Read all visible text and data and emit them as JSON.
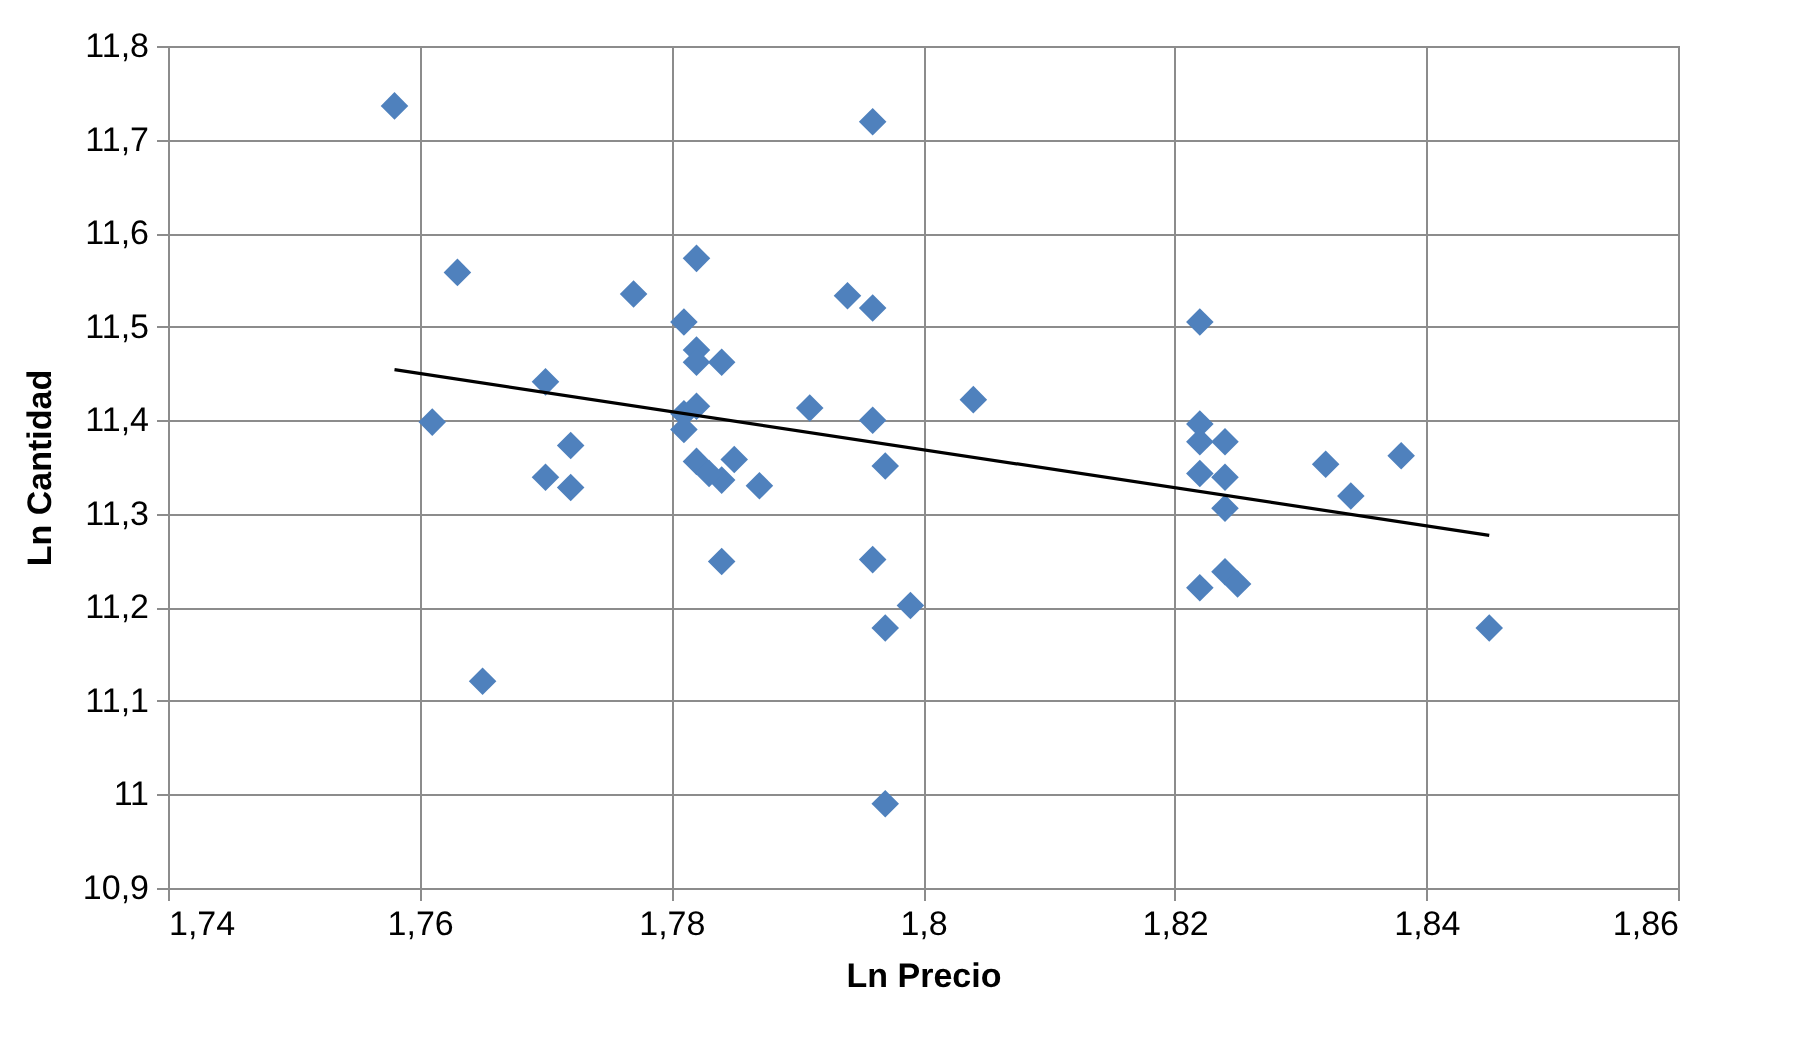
{
  "chart_data": {
    "type": "scatter",
    "xlabel": "Ln Precio",
    "ylabel": "Ln Cantidad",
    "xlim": [
      1.74,
      1.86
    ],
    "ylim": [
      10.9,
      11.8
    ],
    "xticks": [
      {
        "value": 1.74,
        "label": "1,74"
      },
      {
        "value": 1.76,
        "label": "1,76"
      },
      {
        "value": 1.78,
        "label": "1,78"
      },
      {
        "value": 1.8,
        "label": "1,8"
      },
      {
        "value": 1.82,
        "label": "1,82"
      },
      {
        "value": 1.84,
        "label": "1,84"
      },
      {
        "value": 1.86,
        "label": "1,86"
      }
    ],
    "yticks": [
      {
        "value": 10.9,
        "label": "10,9"
      },
      {
        "value": 11,
        "label": "11"
      },
      {
        "value": 11.1,
        "label": "11,1"
      },
      {
        "value": 11.2,
        "label": "11,2"
      },
      {
        "value": 11.3,
        "label": "11,3"
      },
      {
        "value": 11.4,
        "label": "11,4"
      },
      {
        "value": 11.5,
        "label": "11,5"
      },
      {
        "value": 11.6,
        "label": "11,6"
      },
      {
        "value": 11.7,
        "label": "11,7"
      },
      {
        "value": 11.8,
        "label": "11,8"
      }
    ],
    "grid": true,
    "series": [
      {
        "marker": "diamond",
        "color": "#4f81bd",
        "x": [
          1.758,
          1.763,
          1.761,
          1.765,
          1.77,
          1.77,
          1.772,
          1.772,
          1.777,
          1.781,
          1.781,
          1.781,
          1.782,
          1.782,
          1.782,
          1.782,
          1.782,
          1.784,
          1.784,
          1.784,
          1.783,
          1.785,
          1.787,
          1.791,
          1.794,
          1.796,
          1.796,
          1.796,
          1.796,
          1.797,
          1.797,
          1.799,
          1.797,
          1.804,
          1.822,
          1.822,
          1.822,
          1.824,
          1.822,
          1.824,
          1.824,
          1.822,
          1.824,
          1.825,
          1.832,
          1.834,
          1.838,
          1.845
        ],
        "values": [
          11.736,
          11.558,
          11.398,
          11.121,
          11.441,
          11.339,
          11.373,
          11.328,
          11.535,
          11.505,
          11.407,
          11.39,
          11.573,
          11.475,
          11.462,
          11.415,
          11.356,
          11.462,
          11.336,
          11.249,
          11.343,
          11.358,
          11.33,
          11.413,
          11.533,
          11.52,
          11.719,
          11.4,
          11.251,
          11.351,
          11.178,
          11.202,
          10.99,
          11.422,
          11.505,
          11.396,
          11.377,
          11.377,
          11.343,
          11.339,
          11.306,
          11.221,
          11.238,
          11.225,
          11.353,
          11.319,
          11.362,
          11.178
        ]
      },
      {
        "type": "line",
        "marker": "none",
        "color": "#000000",
        "x": [
          1.758,
          1.845
        ],
        "values": [
          11.454,
          11.277
        ]
      }
    ]
  }
}
